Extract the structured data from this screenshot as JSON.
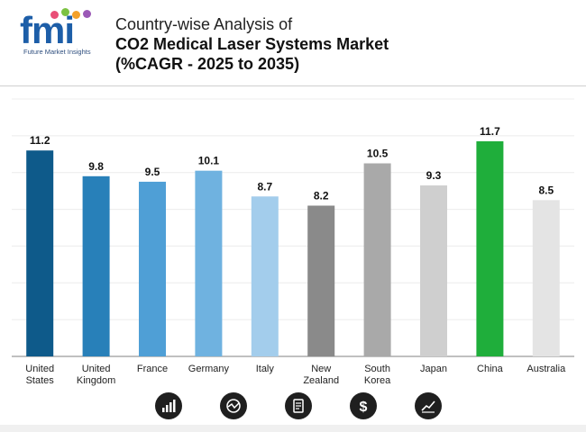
{
  "header": {
    "logo_text": "fmi",
    "logo_tagline": "Future Market Insights",
    "title_line1": "Country-wise Analysis of",
    "title_line2": "CO2 Medical Laser Systems Market",
    "title_line3": "(%CAGR - 2025 to 2035)"
  },
  "chart_data": {
    "type": "bar",
    "title": "Country-wise Analysis of CO2 Medical Laser Systems Market (%CAGR - 2025 to 2035)",
    "xlabel": "",
    "ylabel": "",
    "ylim": [
      0,
      14
    ],
    "grid": true,
    "categories": [
      [
        "United",
        "States"
      ],
      [
        "United",
        "Kingdom"
      ],
      [
        "France"
      ],
      [
        "Germany"
      ],
      [
        "Italy"
      ],
      [
        "New",
        "Zealand"
      ],
      [
        "South",
        "Korea"
      ],
      [
        "Japan"
      ],
      [
        "China"
      ],
      [
        "Australia"
      ]
    ],
    "values": [
      11.2,
      9.8,
      9.5,
      10.1,
      8.7,
      8.2,
      10.5,
      9.3,
      11.7,
      8.5
    ],
    "value_labels": [
      "11.2",
      "9.8",
      "9.5",
      "10.1",
      "8.7",
      "8.2",
      "10.5",
      "9.3",
      "11.7",
      "8.5"
    ],
    "colors": [
      "#0e5a8a",
      "#2880b9",
      "#4f9fd6",
      "#6fb2e0",
      "#a3cdec",
      "#8a8a8a",
      "#a9a9a9",
      "#cfcfcf",
      "#1fae3b",
      "#e4e4e4"
    ]
  },
  "footer_icons": [
    "bar-chart-icon",
    "chart-globe-icon",
    "document-icon",
    "dollar-icon",
    "trend-line-icon"
  ]
}
